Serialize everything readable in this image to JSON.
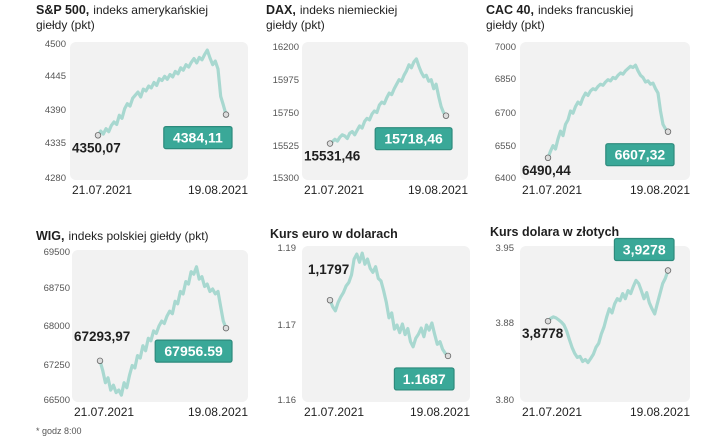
{
  "footnote": "* godz 8:00",
  "style": {
    "line": "#a8d8d0",
    "end_box": "#3aa898",
    "end_box_border": "#2d8a7c",
    "plot_bg": "#f2f2f2",
    "text": "#1f1f1f"
  },
  "chart_data": [
    {
      "type": "line",
      "title": "S&P 500,",
      "subtitle": "indeks amerykańskiej giełdy (pkt)",
      "x_start": "21.07.2021",
      "x_end": "19.08.2021",
      "yticks": [
        "4500",
        "4445",
        "4390",
        "4335",
        "4280"
      ],
      "ylim": [
        4280,
        4500
      ],
      "start_label": "4350,07",
      "end_label": "4384,11",
      "start_value": 4350.07,
      "end_value": 4384.11,
      "values": [
        4350.07,
        4357,
        4352,
        4361,
        4356,
        4366,
        4372,
        4368,
        4383,
        4378,
        4394,
        4402,
        4398,
        4411,
        4416,
        4421,
        4413,
        4426,
        4423,
        4431,
        4428,
        4437,
        4432,
        4443,
        4440,
        4447,
        4442,
        4450,
        4446,
        4455,
        4451,
        4461,
        4457,
        4466,
        4462,
        4470,
        4476,
        4469,
        4478,
        4474,
        4483,
        4490,
        4477,
        4466,
        4472,
        4459,
        4414,
        4400,
        4384.11
      ]
    },
    {
      "type": "line",
      "title": "DAX,",
      "subtitle": "indeks niemieckiej giełdy (pkt)",
      "x_start": "21.07.2021",
      "x_end": "19.08.2021",
      "yticks": [
        "16200",
        "15975",
        "15750",
        "15525",
        "15300"
      ],
      "ylim": [
        15300,
        16200
      ],
      "start_label": "15531,46",
      "end_label": "15718,46",
      "start_value": 15531.46,
      "end_value": 15718.46,
      "values": [
        15531.46,
        15545,
        15560,
        15548,
        15575,
        15590,
        15582,
        15565,
        15600,
        15612,
        15590,
        15620,
        15650,
        15635,
        15680,
        15700,
        15690,
        15730,
        15750,
        15740,
        15790,
        15810,
        15800,
        15840,
        15870,
        15860,
        15900,
        15930,
        15960,
        15950,
        15990,
        16020,
        16060,
        16040,
        16080,
        16100,
        16050,
        16010,
        15980,
        15990,
        15950,
        15960,
        15900,
        15930,
        15850,
        15780,
        15740,
        15718.46
      ]
    },
    {
      "type": "line",
      "title": "CAC 40,",
      "subtitle": "indeks francuskiej giełdy (pkt)",
      "x_start": "21.07.2021",
      "x_end": "19.08.2021",
      "yticks": [
        "7000",
        "6850",
        "6700",
        "6550",
        "6400"
      ],
      "ylim": [
        6400,
        7000
      ],
      "start_label": "6490,44",
      "end_label": "6607,32",
      "start_value": 6490.44,
      "end_value": 6607.32,
      "values": [
        6490.44,
        6520,
        6545,
        6530,
        6575,
        6610,
        6590,
        6640,
        6660,
        6700,
        6690,
        6720,
        6740,
        6730,
        6760,
        6780,
        6770,
        6790,
        6800,
        6795,
        6810,
        6820,
        6815,
        6830,
        6840,
        6835,
        6850,
        6845,
        6860,
        6870,
        6865,
        6880,
        6890,
        6900,
        6895,
        6905,
        6880,
        6860,
        6850,
        6830,
        6835,
        6820,
        6825,
        6800,
        6780,
        6700,
        6640,
        6620,
        6607.32
      ]
    },
    {
      "type": "line",
      "title": "WIG,",
      "subtitle": "indeks polskiej giełdy (pkt)",
      "x_start": "21.07.2021",
      "x_end": "19.08.2021",
      "yticks": [
        "69500",
        "68750",
        "68000",
        "67250",
        "66500"
      ],
      "ylim": [
        66500,
        69500
      ],
      "start_label": "67293,97",
      "end_label": "67956.59",
      "start_value": 67293.97,
      "end_value": 67956.59,
      "values": [
        67293.97,
        67100,
        66850,
        66950,
        66700,
        66800,
        66650,
        66700,
        66600,
        66850,
        66750,
        67000,
        67200,
        67150,
        67400,
        67350,
        67600,
        67500,
        67750,
        67700,
        67900,
        67850,
        68000,
        68100,
        68050,
        68200,
        68300,
        68250,
        68500,
        68450,
        68700,
        68650,
        68900,
        68850,
        69100,
        69050,
        69200,
        68950,
        69000,
        68800,
        68850,
        68700,
        68750,
        68650,
        68700,
        68400,
        68100,
        67956.59
      ]
    },
    {
      "type": "line",
      "title": "Kurs euro w dolarach",
      "subtitle": "",
      "x_start": "21.07.2021",
      "x_end": "19.08.2021",
      "yticks": [
        "1.19",
        "1.17",
        "1.16"
      ],
      "ylim": [
        1.16,
        1.19
      ],
      "start_label": "1,1797",
      "end_label": "1.1687",
      "start_value": 1.1797,
      "end_value": 1.1687,
      "values": [
        1.1797,
        1.1784,
        1.1776,
        1.1792,
        1.1803,
        1.1812,
        1.1825,
        1.1832,
        1.1847,
        1.1878,
        1.1888,
        1.1872,
        1.189,
        1.1868,
        1.1878,
        1.186,
        1.1852,
        1.1863,
        1.184,
        1.1835,
        1.1816,
        1.1793,
        1.1762,
        1.1772,
        1.174,
        1.1748,
        1.1733,
        1.175,
        1.1729,
        1.1741,
        1.1715,
        1.1705,
        1.1722,
        1.173,
        1.1742,
        1.1725,
        1.1748,
        1.1738,
        1.1752,
        1.173,
        1.171,
        1.1715,
        1.17,
        1.1692,
        1.1687
      ]
    },
    {
      "type": "line",
      "title": "Kurs dolara w złotych",
      "subtitle": "",
      "x_start": "21.07.2021",
      "x_end": "19.08.2021",
      "yticks": [
        "3.95",
        "3.88",
        "3.80"
      ],
      "ylim": [
        3.8,
        3.95
      ],
      "start_label": "3,8778",
      "end_label": "3,9278",
      "start_value": 3.8778,
      "end_value": 3.9278,
      "values": [
        3.8778,
        3.8805,
        3.882,
        3.881,
        3.879,
        3.877,
        3.874,
        3.868,
        3.86,
        3.852,
        3.846,
        3.842,
        3.843,
        3.838,
        3.84,
        3.837,
        3.841,
        3.845,
        3.852,
        3.856,
        3.865,
        3.872,
        3.882,
        3.89,
        3.886,
        3.895,
        3.9,
        3.898,
        3.905,
        3.9,
        3.908,
        3.905,
        3.912,
        3.918,
        3.915,
        3.908,
        3.9,
        3.906,
        3.896,
        3.89,
        3.885,
        3.895,
        3.905,
        3.915,
        3.92,
        3.9278
      ]
    }
  ]
}
